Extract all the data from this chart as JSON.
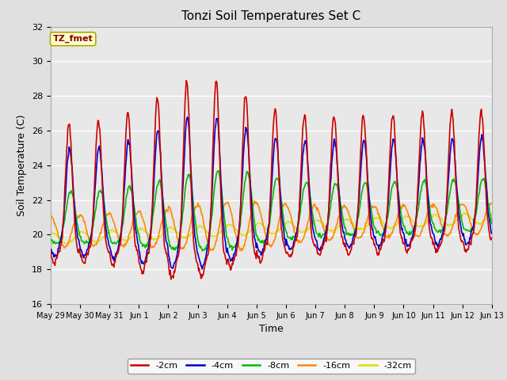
{
  "title": "Tonzi Soil Temperatures Set C",
  "xlabel": "Time",
  "ylabel": "Soil Temperature (C)",
  "ylim": [
    16,
    32
  ],
  "yticks": [
    16,
    18,
    20,
    22,
    24,
    26,
    28,
    30,
    32
  ],
  "annotation_label": "TZ_fmet",
  "annotation_color": "#8B0000",
  "annotation_bg": "#FFFFD0",
  "annotation_border": "#AAAA00",
  "bg_color": "#E0E0E0",
  "plot_bg": "#E8E8E8",
  "grid_color": "#FFFFFF",
  "colors": {
    "-2cm": "#CC0000",
    "-4cm": "#0000CC",
    "-8cm": "#00BB00",
    "-16cm": "#FF8800",
    "-32cm": "#DDDD00"
  },
  "x_tick_labels": [
    "May 29",
    "May 30",
    "May 31",
    "Jun 1",
    "Jun 2",
    "Jun 3",
    "Jun 4",
    "Jun 5",
    "Jun 6",
    "Jun 7",
    "Jun 8",
    "Jun 9",
    "Jun 10",
    "Jun 11",
    "Jun 12",
    "Jun 13"
  ],
  "n_days": 15,
  "points_per_day": 48,
  "figsize": [
    6.4,
    4.8
  ],
  "dpi": 100
}
